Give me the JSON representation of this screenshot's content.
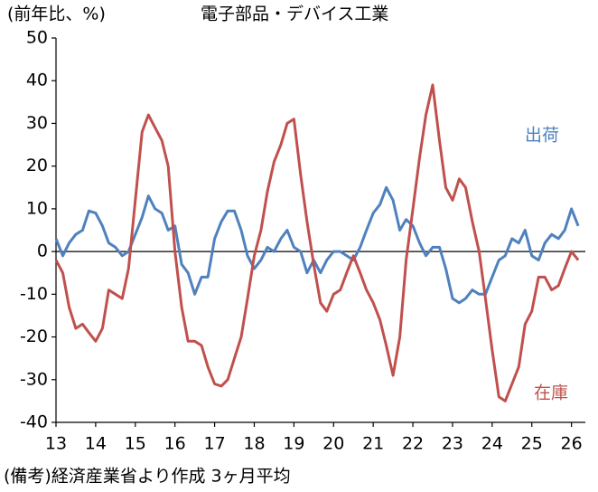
{
  "chart_data": {
    "type": "line",
    "y_label": "(前年比、%)",
    "title": "電子部品・デバイス工業",
    "note": "(備考)経済産業省より作成 3ヶ月平均",
    "x": [
      13.0,
      13.17,
      13.33,
      13.5,
      13.67,
      13.83,
      14.0,
      14.17,
      14.33,
      14.5,
      14.67,
      14.83,
      15.0,
      15.17,
      15.33,
      15.5,
      15.67,
      15.83,
      16.0,
      16.17,
      16.33,
      16.5,
      16.67,
      16.83,
      17.0,
      17.17,
      17.33,
      17.5,
      17.67,
      17.83,
      18.0,
      18.17,
      18.33,
      18.5,
      18.67,
      18.83,
      19.0,
      19.17,
      19.33,
      19.5,
      19.67,
      19.83,
      20.0,
      20.17,
      20.33,
      20.5,
      20.67,
      20.83,
      21.0,
      21.17,
      21.33,
      21.5,
      21.67,
      21.83,
      22.0,
      22.17,
      22.33,
      22.5,
      22.67,
      22.83,
      23.0,
      23.17,
      23.33,
      23.5,
      23.67,
      23.83,
      24.0,
      24.17,
      24.33,
      24.5,
      24.67,
      24.83,
      25.0,
      25.17,
      25.33,
      25.5,
      25.67,
      25.83,
      26.0,
      26.17
    ],
    "series": [
      {
        "name": "出荷",
        "color": "#4f81bd",
        "values": [
          3,
          -1,
          2,
          4,
          5,
          9.5,
          9,
          6,
          2,
          1,
          -1,
          0,
          4,
          8,
          13,
          10,
          9,
          5,
          6,
          -3,
          -5,
          -10,
          -6,
          -6,
          3,
          7,
          9.5,
          9.5,
          5,
          -1,
          -4,
          -2,
          1,
          0,
          3,
          5,
          1,
          0,
          -5,
          -2,
          -5,
          -2,
          0,
          0,
          -1,
          -2,
          1,
          5,
          9,
          11,
          15,
          12,
          5,
          7.5,
          6,
          2,
          -1,
          1,
          1,
          -4,
          -11,
          -12,
          -11,
          -9,
          -10,
          -10,
          -6,
          -2,
          -1,
          3,
          2,
          5,
          -1,
          -2,
          2,
          4,
          3,
          5,
          10,
          6
        ]
      },
      {
        "name": "在庫",
        "color": "#c0504d",
        "values": [
          -2,
          -5,
          -13,
          -18,
          -17,
          -19,
          -21,
          -18,
          -9,
          -10,
          -11,
          -4,
          12,
          28,
          32,
          29,
          26,
          20,
          0,
          -13,
          -21,
          -21,
          -22,
          -27,
          -31,
          -31.5,
          -30,
          -25,
          -20,
          -11,
          -1,
          5,
          14,
          21,
          25,
          30,
          31,
          18,
          7,
          -3,
          -12,
          -14,
          -10,
          -9,
          -5,
          -1,
          -5,
          -9,
          -12,
          -16,
          -22,
          -29,
          -20,
          -2,
          10,
          22,
          32,
          39,
          26,
          15,
          12,
          17,
          15,
          7,
          0,
          -11,
          -23,
          -34,
          -35,
          -31,
          -27,
          -17,
          -14,
          -6,
          -6,
          -9,
          -8,
          -4,
          0,
          -2
        ]
      }
    ],
    "xlim": [
      13,
      26.35
    ],
    "xticks": [
      13,
      14,
      15,
      16,
      17,
      18,
      19,
      20,
      21,
      22,
      23,
      24,
      25,
      26
    ],
    "ylim": [
      -40,
      50
    ],
    "yticks": [
      -40,
      -30,
      -20,
      -10,
      0,
      10,
      20,
      30,
      40,
      50
    ]
  }
}
